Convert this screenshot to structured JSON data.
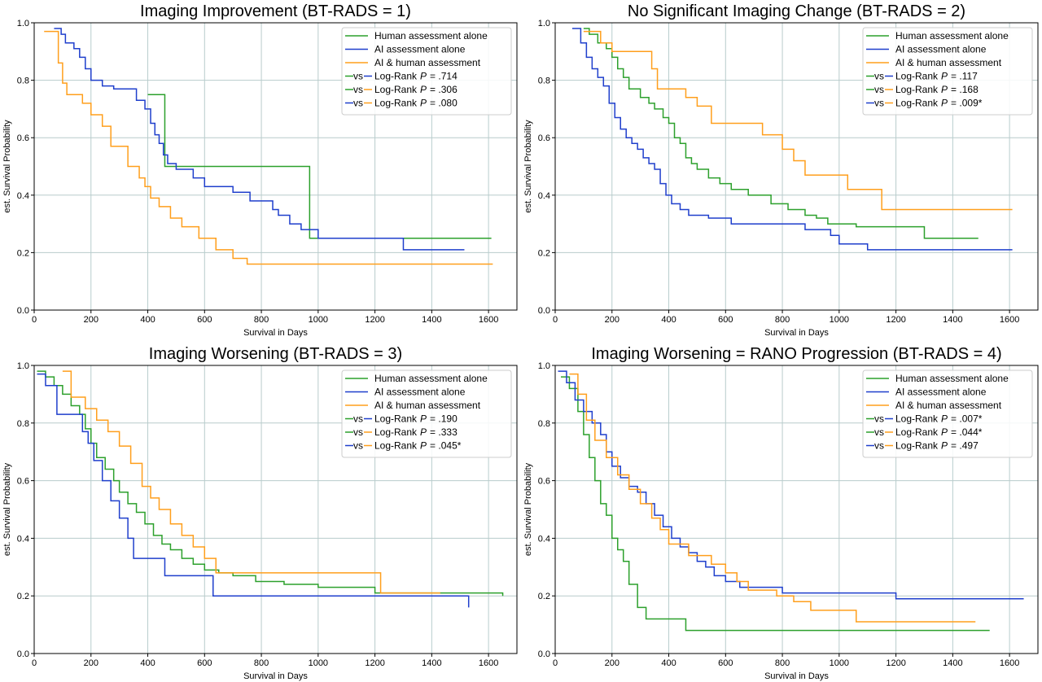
{
  "colors": {
    "human": "#2ca02c",
    "ai": "#1f3fcc",
    "ai_human": "#ff9f1c",
    "grid": "#b8cccc"
  },
  "chart_data": [
    {
      "type": "line",
      "title": "Imaging Improvement (BT-RADS = 1)",
      "xlabel": "Survival in Days",
      "ylabel": "est. Survival Probability",
      "xlim": [
        0,
        1700
      ],
      "ylim": [
        0,
        1.0
      ],
      "xticks": [
        0,
        200,
        400,
        600,
        800,
        1000,
        1200,
        1400,
        1600
      ],
      "yticks": [
        0.0,
        0.2,
        0.4,
        0.6,
        0.8,
        1.0
      ],
      "grid": true,
      "legend_location": "upper right",
      "series": [
        {
          "name": "Human assessment alone",
          "color_key": "human",
          "x": [
            400,
            460,
            460,
            970,
            970,
            1610
          ],
          "y": [
            0.75,
            0.75,
            0.5,
            0.5,
            0.25,
            0.25
          ]
        },
        {
          "name": "AI assessment alone",
          "color_key": "ai",
          "x": [
            70,
            95,
            110,
            140,
            160,
            180,
            200,
            240,
            280,
            310,
            360,
            390,
            410,
            425,
            440,
            455,
            470,
            500,
            560,
            600,
            700,
            760,
            840,
            860,
            900,
            940,
            970,
            1000,
            1300,
            1515
          ],
          "y": [
            0.98,
            0.96,
            0.93,
            0.91,
            0.88,
            0.84,
            0.8,
            0.78,
            0.77,
            0.77,
            0.73,
            0.7,
            0.65,
            0.61,
            0.58,
            0.54,
            0.51,
            0.49,
            0.46,
            0.43,
            0.41,
            0.38,
            0.35,
            0.33,
            0.3,
            0.28,
            0.28,
            0.25,
            0.21,
            0.21
          ]
        },
        {
          "name": "AI & human assessment",
          "color_key": "ai_human",
          "x": [
            35,
            85,
            100,
            115,
            170,
            200,
            240,
            270,
            330,
            370,
            390,
            410,
            440,
            480,
            520,
            580,
            640,
            700,
            750,
            1000,
            1615
          ],
          "y": [
            0.97,
            0.86,
            0.79,
            0.75,
            0.72,
            0.68,
            0.64,
            0.57,
            0.5,
            0.46,
            0.43,
            0.39,
            0.36,
            0.32,
            0.29,
            0.25,
            0.21,
            0.18,
            0.16,
            0.16,
            0.16
          ]
        }
      ],
      "comparisons": [
        {
          "left": "human",
          "right": "ai",
          "vs": "vs",
          "label": "Log-Rank",
          "p": "P",
          "value": "= .714"
        },
        {
          "left": "human",
          "right": "ai_human",
          "vs": "vs",
          "label": "Log-Rank",
          "p": "P",
          "value": "= .306"
        },
        {
          "left": "ai",
          "right": "ai_human",
          "vs": "vs",
          "label": "Log-Rank",
          "p": "P",
          "value": "= .080"
        }
      ]
    },
    {
      "type": "line",
      "title": "No Significant Imaging Change (BT-RADS = 2)",
      "xlabel": "Survival in Days",
      "ylabel": "est. Survival Probability",
      "xlim": [
        0,
        1700
      ],
      "ylim": [
        0,
        1.0
      ],
      "xticks": [
        0,
        200,
        400,
        600,
        800,
        1000,
        1200,
        1400,
        1600
      ],
      "yticks": [
        0.0,
        0.2,
        0.4,
        0.6,
        0.8,
        1.0
      ],
      "grid": true,
      "legend_location": "upper right",
      "series": [
        {
          "name": "Human assessment alone",
          "color_key": "human",
          "x": [
            100,
            120,
            150,
            180,
            200,
            220,
            240,
            260,
            300,
            330,
            350,
            380,
            400,
            420,
            440,
            460,
            480,
            500,
            540,
            580,
            620,
            680,
            760,
            820,
            880,
            920,
            960,
            1060,
            1160,
            1300,
            1490
          ],
          "y": [
            0.98,
            0.96,
            0.93,
            0.91,
            0.88,
            0.84,
            0.81,
            0.77,
            0.74,
            0.72,
            0.7,
            0.67,
            0.65,
            0.6,
            0.58,
            0.53,
            0.51,
            0.49,
            0.46,
            0.44,
            0.42,
            0.4,
            0.37,
            0.35,
            0.33,
            0.32,
            0.3,
            0.29,
            0.29,
            0.25,
            0.25
          ]
        },
        {
          "name": "AI assessment alone",
          "color_key": "ai",
          "x": [
            60,
            90,
            110,
            130,
            150,
            170,
            190,
            210,
            230,
            250,
            270,
            290,
            310,
            330,
            350,
            370,
            390,
            410,
            440,
            470,
            540,
            620,
            740,
            880,
            970,
            1000,
            1100,
            1610
          ],
          "y": [
            0.98,
            0.93,
            0.88,
            0.84,
            0.81,
            0.78,
            0.72,
            0.67,
            0.63,
            0.6,
            0.58,
            0.56,
            0.53,
            0.51,
            0.49,
            0.44,
            0.4,
            0.37,
            0.35,
            0.33,
            0.32,
            0.3,
            0.3,
            0.28,
            0.26,
            0.23,
            0.21,
            0.21
          ]
        },
        {
          "name": "AI & human assessment",
          "color_key": "ai_human",
          "x": [
            100,
            160,
            200,
            340,
            360,
            460,
            500,
            550,
            730,
            800,
            840,
            880,
            1030,
            1150,
            1610
          ],
          "y": [
            0.97,
            0.93,
            0.9,
            0.84,
            0.77,
            0.74,
            0.71,
            0.65,
            0.61,
            0.56,
            0.52,
            0.47,
            0.42,
            0.35,
            0.35
          ]
        }
      ],
      "comparisons": [
        {
          "left": "human",
          "right": "ai",
          "vs": "vs",
          "label": "Log-Rank",
          "p": "P",
          "value": "= .117"
        },
        {
          "left": "human",
          "right": "ai_human",
          "vs": "vs",
          "label": "Log-Rank",
          "p": "P",
          "value": "= .168"
        },
        {
          "left": "ai",
          "right": "ai_human",
          "vs": "vs",
          "label": "Log-Rank",
          "p": "P",
          "value": "= .009*"
        }
      ]
    },
    {
      "type": "line",
      "title": "Imaging Worsening (BT-RADS = 3)",
      "xlabel": "Survival in Days",
      "ylabel": "est. Survival Probability",
      "xlim": [
        0,
        1700
      ],
      "ylim": [
        0,
        1.0
      ],
      "xticks": [
        0,
        200,
        400,
        600,
        800,
        1000,
        1200,
        1400,
        1600
      ],
      "yticks": [
        0.0,
        0.2,
        0.4,
        0.6,
        0.8,
        1.0
      ],
      "grid": true,
      "legend_location": "upper right",
      "series": [
        {
          "name": "Human assessment alone",
          "color_key": "human",
          "x": [
            10,
            40,
            70,
            100,
            130,
            160,
            180,
            200,
            220,
            250,
            280,
            300,
            330,
            360,
            390,
            420,
            450,
            480,
            520,
            560,
            600,
            650,
            700,
            780,
            880,
            1000,
            1200,
            1650
          ],
          "y": [
            0.98,
            0.96,
            0.93,
            0.9,
            0.86,
            0.83,
            0.78,
            0.73,
            0.68,
            0.64,
            0.6,
            0.56,
            0.52,
            0.49,
            0.45,
            0.41,
            0.38,
            0.36,
            0.33,
            0.31,
            0.29,
            0.28,
            0.27,
            0.25,
            0.24,
            0.23,
            0.21,
            0.2
          ]
        },
        {
          "name": "AI assessment alone",
          "color_key": "ai",
          "x": [
            10,
            40,
            80,
            170,
            190,
            210,
            240,
            270,
            300,
            330,
            350,
            460,
            630,
            1530
          ],
          "y": [
            0.97,
            0.93,
            0.83,
            0.77,
            0.73,
            0.67,
            0.6,
            0.53,
            0.47,
            0.4,
            0.33,
            0.27,
            0.2,
            0.16
          ]
        },
        {
          "name": "AI & human assessment",
          "color_key": "ai_human",
          "x": [
            100,
            130,
            180,
            220,
            260,
            300,
            340,
            380,
            410,
            440,
            480,
            520,
            560,
            600,
            640,
            1220,
            1430
          ],
          "y": [
            0.98,
            0.89,
            0.85,
            0.81,
            0.77,
            0.72,
            0.66,
            0.58,
            0.54,
            0.5,
            0.45,
            0.41,
            0.37,
            0.33,
            0.28,
            0.21,
            0.21
          ]
        }
      ],
      "comparisons": [
        {
          "left": "human",
          "right": "ai",
          "vs": "vs",
          "label": "Log-Rank",
          "p": "P",
          "value": "= .190"
        },
        {
          "left": "human",
          "right": "ai_human",
          "vs": "vs",
          "label": "Log-Rank",
          "p": "P",
          "value": "= .333"
        },
        {
          "left": "ai",
          "right": "ai_human",
          "vs": "vs",
          "label": "Log-Rank",
          "p": "P",
          "value": "= .045*"
        }
      ]
    },
    {
      "type": "line",
      "title": "Imaging Worsening = RANO Progression (BT-RADS = 4)",
      "xlabel": "Survival in Days",
      "ylabel": "est. Survival Probability",
      "xlim": [
        0,
        1700
      ],
      "ylim": [
        0,
        1.0
      ],
      "xticks": [
        0,
        200,
        400,
        600,
        800,
        1000,
        1200,
        1400,
        1600
      ],
      "yticks": [
        0.0,
        0.2,
        0.4,
        0.6,
        0.8,
        1.0
      ],
      "grid": true,
      "legend_location": "upper right",
      "series": [
        {
          "name": "Human assessment alone",
          "color_key": "human",
          "x": [
            20,
            50,
            80,
            100,
            120,
            140,
            160,
            180,
            200,
            220,
            240,
            260,
            290,
            320,
            350,
            460,
            1530
          ],
          "y": [
            0.96,
            0.92,
            0.84,
            0.76,
            0.68,
            0.6,
            0.52,
            0.48,
            0.4,
            0.36,
            0.32,
            0.24,
            0.16,
            0.12,
            0.12,
            0.08,
            0.08
          ]
        },
        {
          "name": "AI assessment alone",
          "color_key": "ai",
          "x": [
            10,
            40,
            70,
            100,
            130,
            160,
            180,
            200,
            230,
            260,
            290,
            320,
            350,
            380,
            410,
            440,
            470,
            500,
            530,
            560,
            600,
            650,
            800,
            1200,
            1650
          ],
          "y": [
            0.98,
            0.94,
            0.88,
            0.84,
            0.8,
            0.76,
            0.7,
            0.65,
            0.61,
            0.58,
            0.56,
            0.52,
            0.48,
            0.44,
            0.4,
            0.37,
            0.35,
            0.32,
            0.3,
            0.27,
            0.25,
            0.23,
            0.21,
            0.19,
            0.19
          ]
        },
        {
          "name": "AI & human assessment",
          "color_key": "ai_human",
          "x": [
            50,
            80,
            110,
            140,
            180,
            220,
            260,
            300,
            340,
            370,
            400,
            470,
            550,
            600,
            640,
            680,
            780,
            840,
            900,
            1060,
            1480
          ],
          "y": [
            0.97,
            0.9,
            0.81,
            0.74,
            0.68,
            0.62,
            0.57,
            0.52,
            0.47,
            0.43,
            0.38,
            0.34,
            0.31,
            0.28,
            0.25,
            0.22,
            0.2,
            0.18,
            0.15,
            0.11,
            0.11
          ]
        }
      ],
      "comparisons": [
        {
          "left": "human",
          "right": "ai",
          "vs": "vs",
          "label": "Log-Rank",
          "p": "P",
          "value": "= .007*"
        },
        {
          "left": "human",
          "right": "ai_human",
          "vs": "vs",
          "label": "Log-Rank",
          "p": "P",
          "value": "= .044*"
        },
        {
          "left": "ai",
          "right": "ai_human",
          "vs": "vs",
          "label": "Log-Rank",
          "p": "P",
          "value": "= .497"
        }
      ]
    }
  ]
}
